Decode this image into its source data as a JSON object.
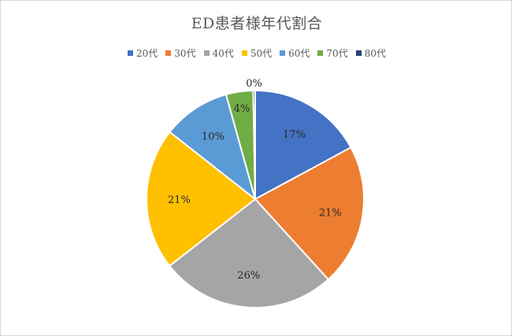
{
  "chart_data": {
    "type": "pie",
    "title": "ED患者様年代割合",
    "legend_position": "top",
    "categories": [
      "20代",
      "30代",
      "40代",
      "50代",
      "60代",
      "70代",
      "80代"
    ],
    "values": [
      17,
      21,
      26,
      21,
      10,
      4,
      0.3
    ],
    "labels": [
      "17%",
      "21%",
      "26%",
      "21%",
      "10%",
      "4%",
      "0%"
    ],
    "colors": [
      "#4472C4",
      "#ED7D31",
      "#A5A5A5",
      "#FFC000",
      "#5B9BD5",
      "#70AD47",
      "#264478"
    ]
  }
}
